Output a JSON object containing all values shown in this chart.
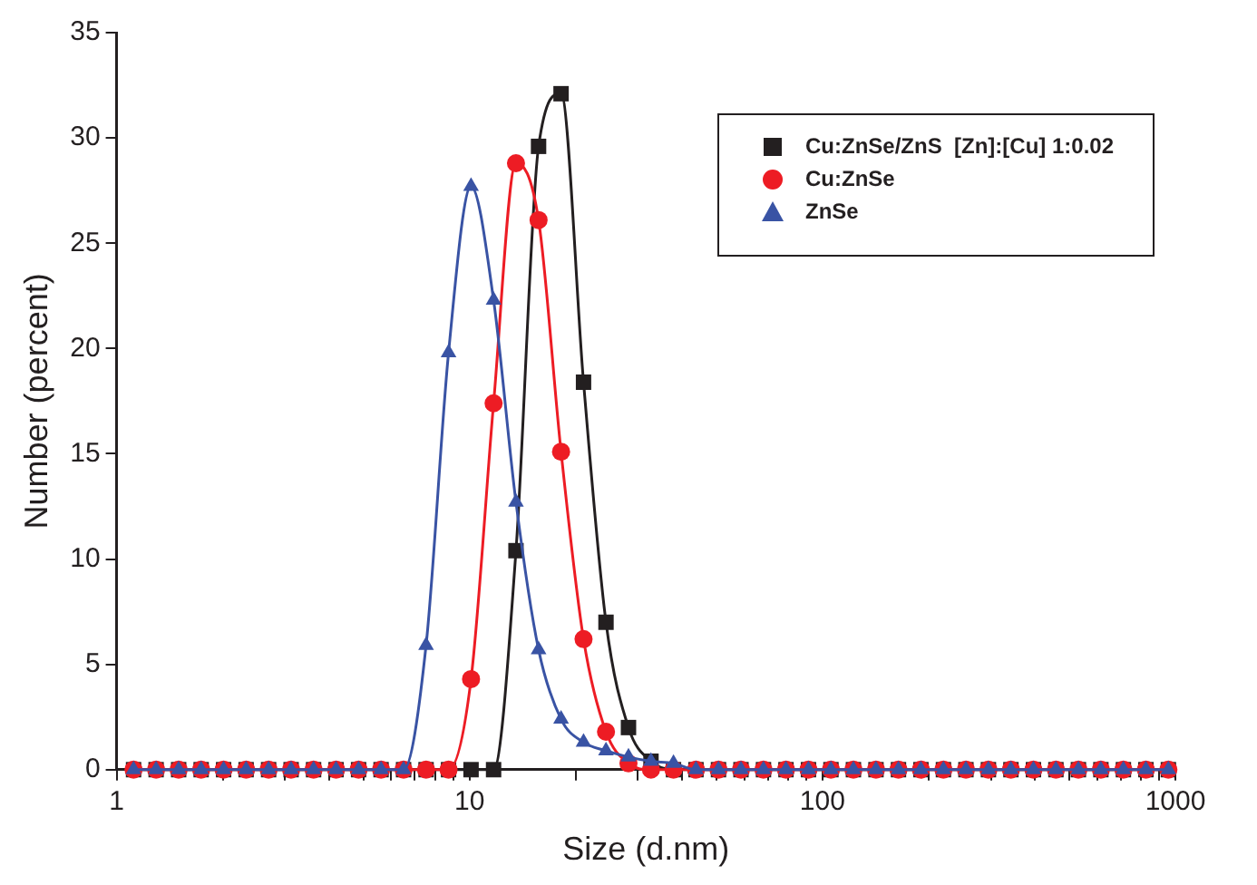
{
  "chart_data": {
    "type": "line",
    "xlabel": "Size (d.nm)",
    "ylabel": "Number (percent)",
    "log": "x",
    "grid": false,
    "legend": "top right",
    "line_style": "solid",
    "x": [
      1.117,
      1.294,
      1.499,
      1.736,
      2.01,
      2.328,
      2.696,
      3.122,
      3.615,
      4.187,
      4.849,
      5.615,
      6.503,
      7.531,
      8.721,
      10.1,
      11.7,
      13.54,
      15.69,
      18.17,
      21.04,
      24.36,
      28.21,
      32.67,
      37.84,
      43.82,
      50.75,
      58.77,
      68.06,
      78.82,
      91.28,
      105.7,
      122.4,
      141.8,
      164.2,
      190.1,
      220.2,
      255,
      295.3,
      342,
      396.1,
      458.7,
      531.2,
      615.1,
      712.4,
      825,
      955.4
    ],
    "xlim": [
      1,
      1000
    ],
    "xticks": [
      1,
      {
        "value": 2,
        "label": null
      },
      {
        "value": 3,
        "label": null
      },
      {
        "value": 4,
        "label": null
      },
      {
        "value": 5,
        "label": null
      },
      {
        "value": 6,
        "label": null
      },
      {
        "value": 7,
        "label": null
      },
      {
        "value": 8,
        "label": null
      },
      {
        "value": 9,
        "label": null
      },
      10,
      {
        "value": 20,
        "label": null
      },
      {
        "value": 30,
        "label": null
      },
      {
        "value": 40,
        "label": null
      },
      {
        "value": 50,
        "label": null
      },
      {
        "value": 60,
        "label": null
      },
      {
        "value": 70,
        "label": null
      },
      {
        "value": 80,
        "label": null
      },
      {
        "value": 90,
        "label": null
      },
      100,
      {
        "value": 200,
        "label": null
      },
      {
        "value": 300,
        "label": null
      },
      {
        "value": 400,
        "label": null
      },
      {
        "value": 500,
        "label": null
      },
      {
        "value": 600,
        "label": null
      },
      {
        "value": 700,
        "label": null
      },
      {
        "value": 800,
        "label": null
      },
      {
        "value": 900,
        "label": null
      },
      1000
    ],
    "ylim": [
      0,
      35
    ],
    "yticks": [
      0,
      5,
      10,
      15,
      20,
      25,
      30,
      35
    ],
    "series": [
      {
        "name": "Cu:ZnSe/ZnS  [Zn]:[Cu] 1:0.02",
        "color": "#231f20",
        "marker": "square",
        "values": [
          0,
          0,
          0,
          0,
          0,
          0,
          0,
          0,
          0,
          0,
          0,
          0,
          0,
          0,
          0,
          0,
          0,
          10.4,
          29.6,
          32.1,
          18.4,
          7.0,
          2.0,
          0.4,
          0,
          0,
          0,
          0,
          0,
          0,
          0,
          0,
          0,
          0,
          0,
          0,
          0,
          0,
          0,
          0,
          0,
          0,
          0,
          0,
          0,
          0,
          0
        ]
      },
      {
        "name": "Cu:ZnSe",
        "color": "#ed1c24",
        "marker": "circle",
        "values": [
          0,
          0,
          0,
          0,
          0,
          0,
          0,
          0,
          0,
          0,
          0,
          0,
          0,
          0,
          0,
          4.3,
          17.4,
          28.8,
          26.1,
          15.1,
          6.2,
          1.8,
          0.3,
          0,
          0,
          0,
          0,
          0,
          0,
          0,
          0,
          0,
          0,
          0,
          0,
          0,
          0,
          0,
          0,
          0,
          0,
          0,
          0,
          0,
          0,
          0,
          0
        ]
      },
      {
        "name": "ZnSe",
        "color": "#3953a4",
        "marker": "triangle",
        "values": [
          0,
          0,
          0,
          0,
          0,
          0,
          0,
          0,
          0,
          0,
          0,
          0,
          0,
          5.9,
          19.8,
          27.7,
          22.3,
          12.7,
          5.7,
          2.4,
          1.3,
          0.9,
          0.6,
          0.4,
          0.3,
          0,
          0,
          0,
          0,
          0,
          0,
          0,
          0,
          0,
          0,
          0,
          0,
          0,
          0,
          0,
          0,
          0,
          0,
          0,
          0,
          0,
          0
        ]
      }
    ]
  }
}
